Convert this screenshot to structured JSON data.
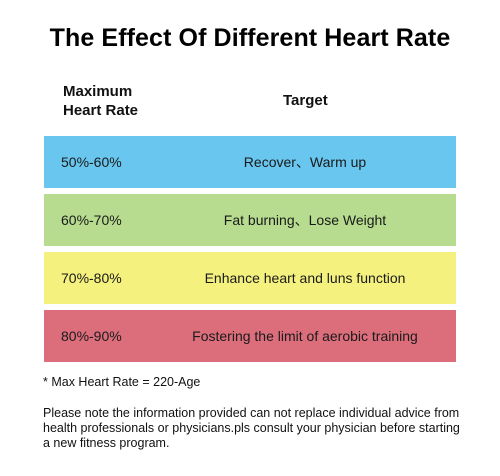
{
  "title": "The Effect Of Different Heart Rate",
  "header": {
    "col1_line1": "Maximum",
    "col1_line2": "Heart Rate",
    "col2": "Target"
  },
  "rows": [
    {
      "range": "50%-60%",
      "target": "Recover、Warm up",
      "color": "#69c6ef"
    },
    {
      "range": "60%-70%",
      "target": "Fat burning、Lose Weight",
      "color": "#b7dc8f"
    },
    {
      "range": "70%-80%",
      "target": "Enhance heart and luns function",
      "color": "#f5f17e"
    },
    {
      "range": "80%-90%",
      "target": "Fostering the limit of aerobic training",
      "color": "#dc6e7c"
    }
  ],
  "footnote": "* Max Heart Rate = 220-Age",
  "disclaimer": "Please note the information provided can not replace individual advice from health professionals or physicians.pls consult your physician before starting a new fitness program."
}
